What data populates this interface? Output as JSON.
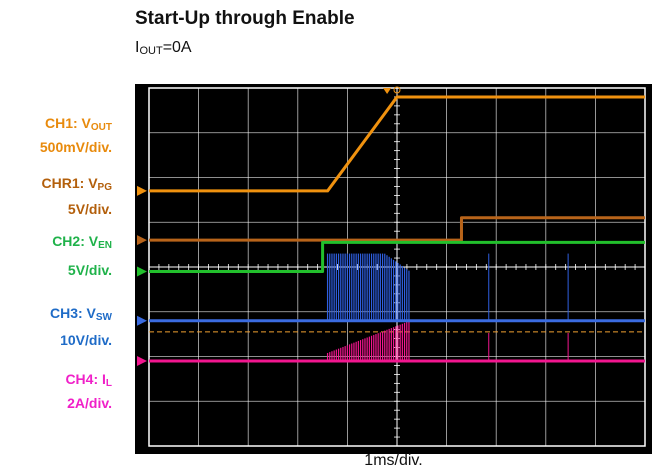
{
  "header": {
    "title": "Start-Up through Enable",
    "subtitle_main": "I",
    "subtitle_sub": "OUT",
    "subtitle_tail": "=0A"
  },
  "channels": [
    {
      "id": "ch1",
      "name_prefix": "CH1: V",
      "name_sub": "OUT",
      "scale": "500mV/div.",
      "color": "#E88A0C"
    },
    {
      "id": "chr1",
      "name_prefix": "CHR1: V",
      "name_sub": "PG",
      "scale": "5V/div.",
      "color": "#B35F0B"
    },
    {
      "id": "ch2",
      "name_prefix": "CH2: V",
      "name_sub": "EN",
      "scale": "5V/div.",
      "color": "#1FB24A"
    },
    {
      "id": "ch3",
      "name_prefix": "CH3: V",
      "name_sub": "SW",
      "scale": "10V/div.",
      "color": "#1E6BC7"
    },
    {
      "id": "ch4",
      "name_prefix": "CH4: I",
      "name_sub": "L",
      "scale": "2A/div.",
      "color": "#F020C8"
    }
  ],
  "timebase": "1ms/div.",
  "chart_data": {
    "type": "line",
    "xlabel": "1ms/div.",
    "x_divisions": 10,
    "y_divisions": 8,
    "x_unit": "div",
    "series": [
      {
        "name": "CH1: VOUT",
        "color": "#F0920F",
        "points": [
          [
            0,
            1.7
          ],
          [
            3.6,
            1.7
          ],
          [
            5.0,
            3.8
          ],
          [
            10,
            3.8
          ]
        ]
      },
      {
        "name": "CHR1: VPG",
        "color": "#B8641A",
        "points": [
          [
            0,
            0.6
          ],
          [
            6.3,
            0.6
          ],
          [
            6.3,
            1.1
          ],
          [
            10,
            1.1
          ]
        ]
      },
      {
        "name": "CH2: VEN",
        "color": "#22C02C",
        "points": [
          [
            0,
            -0.1
          ],
          [
            3.5,
            -0.1
          ],
          [
            3.5,
            0.55
          ],
          [
            10,
            0.55
          ]
        ]
      },
      {
        "name": "CH3: VSW",
        "color": "#3A6BE0",
        "points": [
          [
            0,
            -1.2
          ],
          [
            10,
            -1.2
          ]
        ]
      },
      {
        "name": "CH4: IL",
        "color": "#F2168F",
        "points": [
          [
            0,
            -2.1
          ],
          [
            10,
            -2.1
          ]
        ]
      }
    ]
  }
}
